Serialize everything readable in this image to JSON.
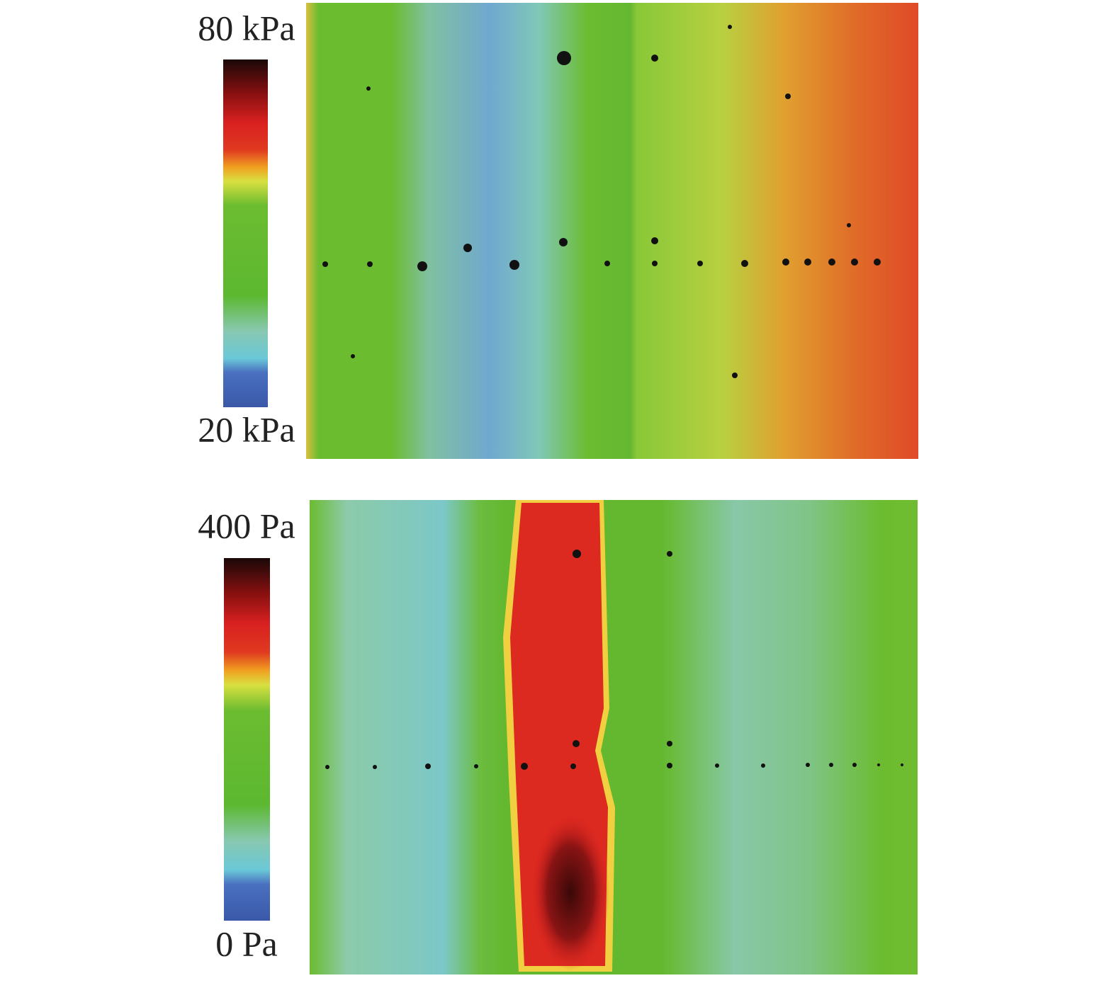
{
  "panels": [
    {
      "colorbar": {
        "max_label": "80 kPa",
        "min_label": "20 kPa"
      }
    },
    {
      "colorbar": {
        "max_label": "400 Pa",
        "min_label": "0 Pa"
      }
    }
  ]
}
